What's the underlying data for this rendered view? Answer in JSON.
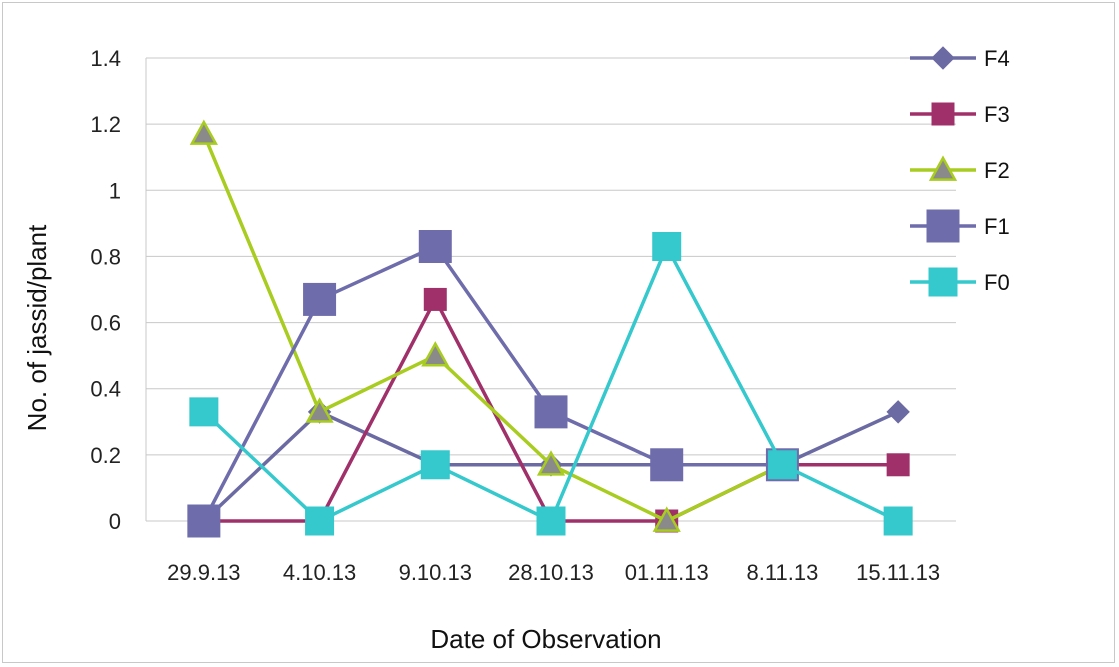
{
  "chart_data": {
    "type": "line",
    "xlabel": "Date of Observation",
    "ylabel": "No. of jassid/plant",
    "categories": [
      "29.9.13",
      "4.10.13",
      "9.10.13",
      "28.10.13",
      "01.11.13",
      "8.11.13",
      "15.11.13"
    ],
    "ylim": [
      0,
      1.4
    ],
    "yticks": [
      "0",
      "0.2",
      "0.4",
      "0.6",
      "0.8",
      "1",
      "1.2",
      "1.4"
    ],
    "grid": true,
    "legend_position": "right",
    "series": [
      {
        "name": "F4",
        "color": "#6b6aa3",
        "marker": "diamond",
        "values": [
          0,
          0.33,
          0.17,
          0.17,
          0.17,
          0.17,
          0.33
        ]
      },
      {
        "name": "F3",
        "color": "#a0306a",
        "marker": "square-small",
        "values": [
          0,
          0,
          0.67,
          0,
          0,
          0.17,
          0.17
        ]
      },
      {
        "name": "F2",
        "color": "#a8cc20",
        "marker": "triangle",
        "values": [
          1.17,
          0.33,
          0.5,
          0.17,
          0,
          0.17,
          null
        ]
      },
      {
        "name": "F1",
        "color": "#6e6cab",
        "marker": "square-large",
        "values": [
          0,
          0.67,
          0.83,
          0.33,
          0.17,
          0.17,
          null
        ]
      },
      {
        "name": "F0",
        "color": "#35c8cc",
        "marker": "square-medium",
        "values": [
          0.33,
          0,
          0.17,
          0,
          0.83,
          0.17,
          0
        ]
      }
    ]
  }
}
